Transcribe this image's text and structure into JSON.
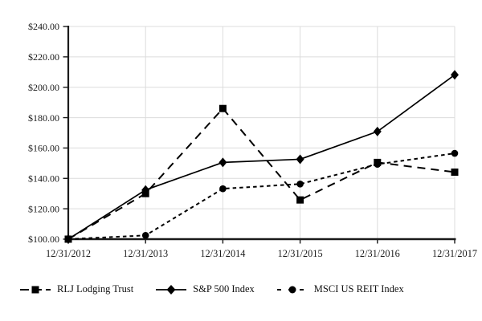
{
  "chart_data": {
    "type": "line",
    "title": "",
    "xlabel": "",
    "ylabel": "",
    "categories": [
      "12/31/2012",
      "12/31/2013",
      "12/31/2014",
      "12/31/2015",
      "12/31/2016",
      "12/31/2017"
    ],
    "series": [
      {
        "name": "RLJ Lodging Trust",
        "values": [
          100.0,
          130.0,
          186.0,
          125.8,
          150.5,
          144.1
        ],
        "line_style": "long-dash",
        "marker": "square"
      },
      {
        "name": "S&P 500 Index",
        "values": [
          100.0,
          132.39,
          150.51,
          152.59,
          170.84,
          208.14
        ],
        "line_style": "solid",
        "marker": "diamond"
      },
      {
        "name": "MSCI US REIT Index",
        "values": [
          100.0,
          102.47,
          133.2,
          136.3,
          149.3,
          156.5
        ],
        "line_style": "short-dash",
        "marker": "circle"
      }
    ],
    "ylim": [
      100,
      240
    ],
    "ytick_step": 20,
    "ytick_labels": [
      "$100.00",
      "$120.00",
      "$140.00",
      "$160.00",
      "$180.00",
      "$200.00",
      "$220.00",
      "$240.00"
    ],
    "grid": true,
    "legend_position": "bottom",
    "colors": {
      "series": "#000000",
      "axis": "#1a1a1a",
      "grid": "#dcdcdc",
      "background": "#ffffff",
      "text": "#1a1a1a"
    }
  }
}
